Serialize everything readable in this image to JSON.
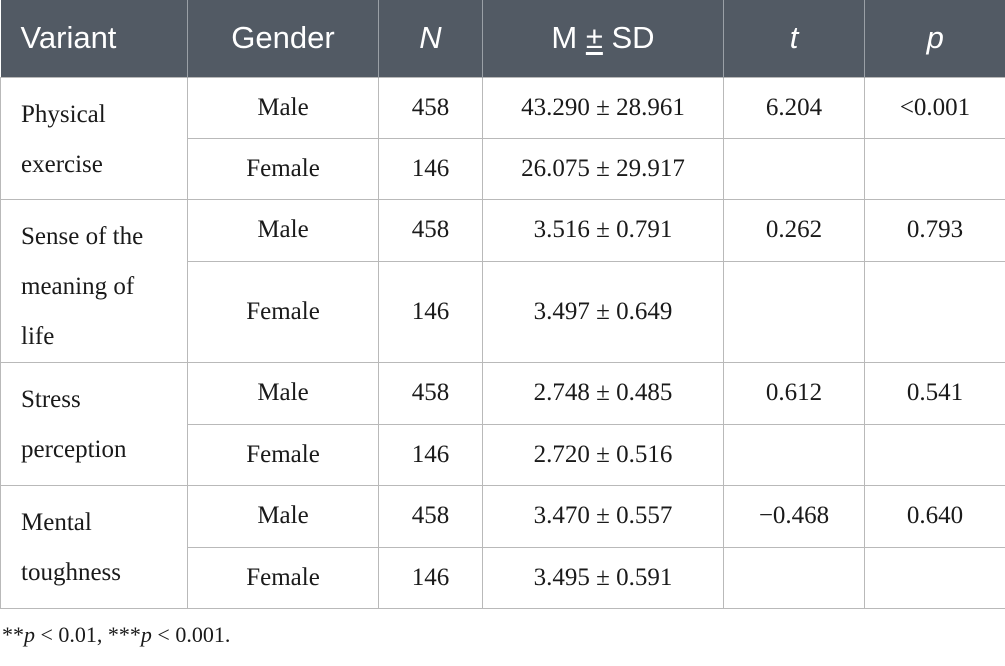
{
  "table": {
    "headers": {
      "variant": "Variant",
      "gender": "Gender",
      "n": "N",
      "mean_sd_prefix": "M ",
      "mean_sd_pm": "±",
      "mean_sd_suffix": " SD",
      "t": "t",
      "p": "p"
    },
    "groups": [
      {
        "variant": "Physical exercise",
        "t": "6.204",
        "p": "<0.001",
        "rows": [
          {
            "gender": "Male",
            "n": "458",
            "msd": "43.290 ± 28.961"
          },
          {
            "gender": "Female",
            "n": "146",
            "msd": "26.075 ± 29.917"
          }
        ]
      },
      {
        "variant": "Sense of the meaning of life",
        "t": "0.262",
        "p": "0.793",
        "rows": [
          {
            "gender": "Male",
            "n": "458",
            "msd": "3.516 ± 0.791"
          },
          {
            "gender": "Female",
            "n": "146",
            "msd": "3.497 ± 0.649"
          }
        ]
      },
      {
        "variant": "Stress perception",
        "t": "0.612",
        "p": "0.541",
        "rows": [
          {
            "gender": "Male",
            "n": "458",
            "msd": "2.748 ± 0.485"
          },
          {
            "gender": "Female",
            "n": "146",
            "msd": "2.720 ± 0.516"
          }
        ]
      },
      {
        "variant": "Mental toughness",
        "t": "−0.468",
        "p": "0.640",
        "rows": [
          {
            "gender": "Male",
            "n": "458",
            "msd": "3.470 ± 0.557"
          },
          {
            "gender": "Female",
            "n": "146",
            "msd": "3.495 ± 0.591"
          }
        ]
      }
    ]
  },
  "footnote": {
    "stars1": "**",
    "p1": "p",
    "rest1": " < 0.01, ",
    "stars2": "***",
    "p2": "p",
    "rest2": " < 0.001."
  }
}
